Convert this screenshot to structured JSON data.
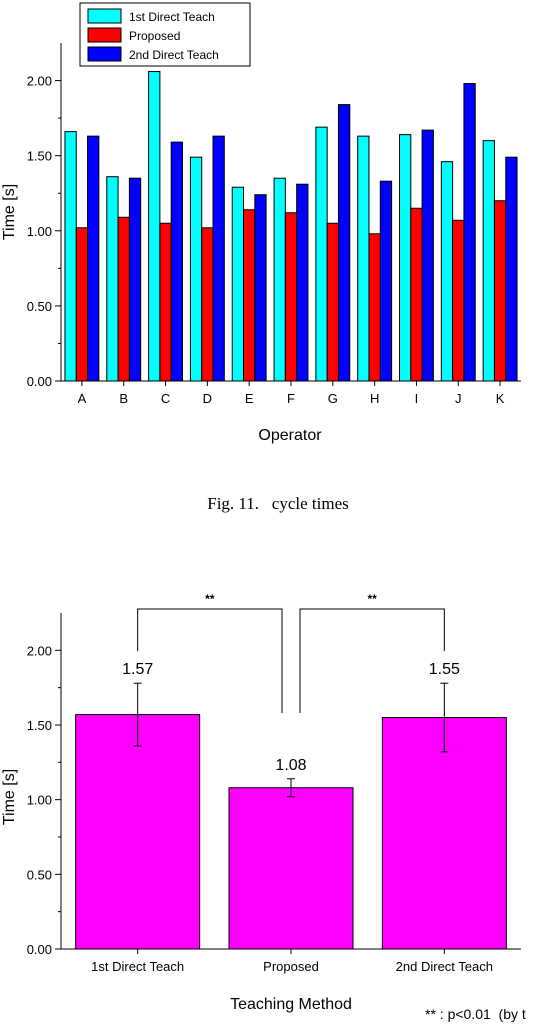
{
  "chart_data": [
    {
      "type": "bar",
      "title": "",
      "xlabel": "Operator",
      "ylabel": "Time [s]",
      "ylim": [
        0,
        2.25
      ],
      "yticks": [
        "0.00",
        "0.50",
        "1.00",
        "1.50",
        "2.00"
      ],
      "categories": [
        "A",
        "B",
        "C",
        "D",
        "E",
        "F",
        "G",
        "H",
        "I",
        "J",
        "K"
      ],
      "series": [
        {
          "name": "1st Direct Teach",
          "color": "#00ffff",
          "values": [
            1.66,
            1.36,
            2.06,
            1.49,
            1.29,
            1.35,
            1.69,
            1.63,
            1.64,
            1.46,
            1.6
          ]
        },
        {
          "name": "Proposed",
          "color": "#ff0000",
          "values": [
            1.02,
            1.09,
            1.05,
            1.02,
            1.14,
            1.12,
            1.05,
            0.98,
            1.15,
            1.07,
            1.2
          ]
        },
        {
          "name": "2nd Direct Teach",
          "color": "#0000ff",
          "values": [
            1.63,
            1.35,
            1.59,
            1.63,
            1.24,
            1.31,
            1.84,
            1.33,
            1.67,
            1.98,
            1.49
          ]
        }
      ],
      "legend": "top-left",
      "caption": "Fig. 11.   cycle times"
    },
    {
      "type": "bar",
      "title": "",
      "xlabel": "Teaching Method",
      "ylabel": "Time [s]",
      "ylim": [
        0,
        2.25
      ],
      "yticks": [
        "0.00",
        "0.50",
        "1.00",
        "1.50",
        "2.00"
      ],
      "categories": [
        "1st Direct Teach",
        "Proposed",
        "2nd Direct Teach"
      ],
      "values": [
        1.57,
        1.08,
        1.55
      ],
      "value_labels": [
        "1.57",
        "1.08",
        "1.55"
      ],
      "error": [
        0.21,
        0.06,
        0.23
      ],
      "color": "#ff00ff",
      "significance": [
        {
          "between": [
            0,
            1
          ],
          "label": "**"
        },
        {
          "between": [
            1,
            2
          ],
          "label": "**"
        }
      ],
      "note": "** : p<0.01  (by t"
    }
  ]
}
